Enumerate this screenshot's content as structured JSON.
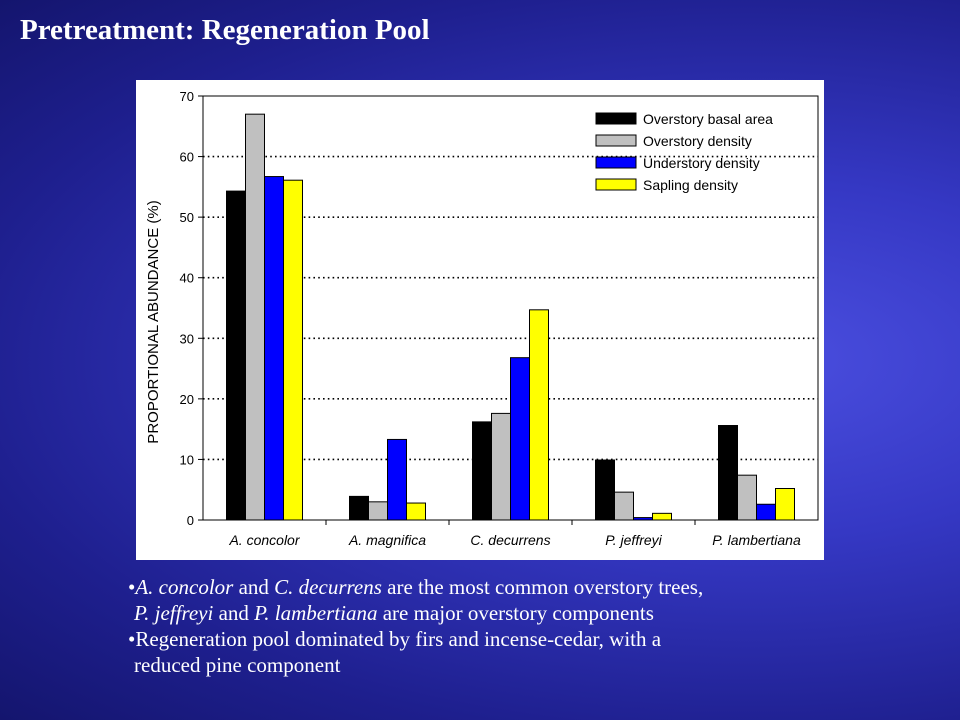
{
  "slide": {
    "title": "Pretreatment: Regeneration Pool"
  },
  "chart_data": {
    "type": "bar",
    "title": "",
    "xlabel": "",
    "ylabel": "PROPORTIONAL ABUNDANCE (%)",
    "ylim": [
      0,
      70
    ],
    "yticks": [
      0,
      10,
      20,
      30,
      40,
      50,
      60,
      70
    ],
    "grid": "dotted horizontal lines at 10 to 60",
    "legend_position": "top-right",
    "categories": [
      "A. concolor",
      "A. magnifica",
      "C. decurrens",
      "P. jeffreyi",
      "P. lambertiana"
    ],
    "series": [
      {
        "name": "Overstory basal area",
        "color": "#000000",
        "values": [
          54.3,
          3.9,
          16.2,
          9.9,
          15.6
        ]
      },
      {
        "name": "Overstory density",
        "color": "#c0c0c0",
        "values": [
          67.0,
          3.0,
          17.6,
          4.6,
          7.4
        ]
      },
      {
        "name": "Understory density",
        "color": "#0000ff",
        "values": [
          56.7,
          13.3,
          26.8,
          0.4,
          2.6
        ]
      },
      {
        "name": "Sapling density",
        "color": "#ffff00",
        "values": [
          56.1,
          2.8,
          34.7,
          1.1,
          5.2
        ]
      }
    ]
  },
  "bullets": [
    {
      "parts": [
        {
          "text": "•",
          "italic": false
        },
        {
          "text": "A. concolor",
          "italic": true
        },
        {
          "text": " and ",
          "italic": false
        },
        {
          "text": "C. decurrens",
          "italic": true
        },
        {
          "text": " are the most common overstory trees,",
          "italic": false
        }
      ]
    },
    {
      "parts": [
        {
          "text": "P. jeffreyi",
          "italic": true
        },
        {
          "text": " and ",
          "italic": false
        },
        {
          "text": "P. lambertiana",
          "italic": true
        },
        {
          "text": " are major overstory components",
          "italic": false
        }
      ]
    },
    {
      "parts": [
        {
          "text": "•Regeneration pool dominated by firs and incense-cedar, with a",
          "italic": false
        }
      ]
    },
    {
      "parts": [
        {
          "text": "reduced pine component",
          "italic": false
        }
      ]
    }
  ]
}
